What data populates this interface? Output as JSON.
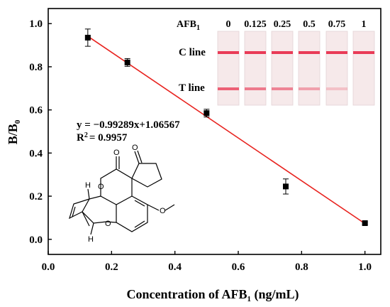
{
  "chart_data": {
    "type": "scatter",
    "xlabel": "Concentration of AFB",
    "xlabel_sub": "1",
    "xlabel_unit": " (ng/mL)",
    "ylabel": "B/B",
    "ylabel_sub": "0",
    "xlim": [
      0.0,
      1.05
    ],
    "ylim": [
      -0.07,
      1.07
    ],
    "xticks": [
      "0.0",
      "0.2",
      "0.4",
      "0.6",
      "0.8",
      "1.0"
    ],
    "yticks": [
      "0.0",
      "0.2",
      "0.4",
      "0.6",
      "0.8",
      "1.0"
    ],
    "x": [
      0.125,
      0.25,
      0.5,
      0.75,
      1.0
    ],
    "y": [
      0.935,
      0.82,
      0.585,
      0.245,
      0.075
    ],
    "error": [
      0.04,
      0.018,
      0.018,
      0.035,
      0.005
    ],
    "fit": {
      "slope": -0.99289,
      "intercept": 1.06567,
      "x_range": [
        0.125,
        1.0
      ]
    },
    "equation": "y = −0.99289x+1.06567",
    "r2_prefix": "R",
    "r2_sup": "2",
    "r2_value": "= 0.9957",
    "colors": {
      "marker": "#000000",
      "fit_line": "#e8231f"
    }
  },
  "inset": {
    "header_label": "AFB",
    "header_sub": "1",
    "concentrations": [
      "0",
      "0.125",
      "0.25",
      "0.5",
      "0.75",
      "1"
    ],
    "c_line_label": "C line",
    "t_line_label": "T line",
    "t_line_intensity": [
      0.75,
      0.6,
      0.55,
      0.4,
      0.22,
      0.0
    ],
    "colors": {
      "strip_bg": "#f6e9ea",
      "line": "#e8314f"
    }
  },
  "molecule": {
    "atoms": [
      "O",
      "O",
      "O",
      "O",
      "O",
      "H",
      "H"
    ]
  }
}
